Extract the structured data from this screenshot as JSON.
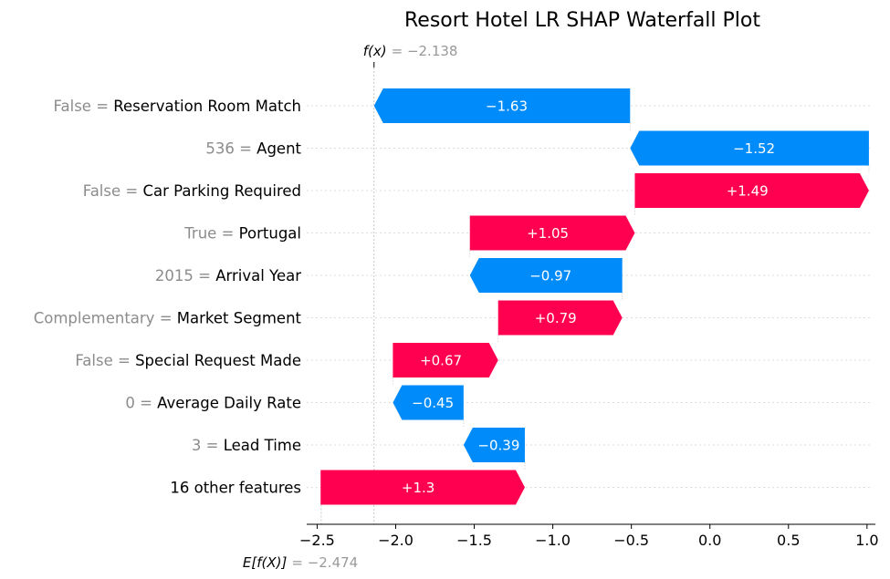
{
  "chart_data": {
    "type": "waterfall",
    "title": "Resort Hotel LR SHAP Waterfall Plot",
    "base_value": -2.474,
    "output_value": -2.138,
    "fx_label_prefix": "f(x)",
    "fx_label_value": "= −2.138",
    "efx_label_prefix": "E[f(X)]",
    "efx_label_value": "= −2.474",
    "xlim": [
      -2.52,
      1.03
    ],
    "xticks": [
      {
        "value": -2.5,
        "label": "−2.5"
      },
      {
        "value": -2.0,
        "label": "−2.0"
      },
      {
        "value": -1.5,
        "label": "−1.5"
      },
      {
        "value": -1.0,
        "label": "−1.0"
      },
      {
        "value": -0.5,
        "label": "−0.5"
      },
      {
        "value": 0.0,
        "label": "0.0"
      },
      {
        "value": 0.5,
        "label": "0.5"
      },
      {
        "value": 1.0,
        "label": "1.0"
      }
    ],
    "features": [
      {
        "value_text": "False",
        "eq": " = ",
        "name": "Reservation Room Match",
        "shap": -1.63,
        "label": "−1.63"
      },
      {
        "value_text": "536",
        "eq": " = ",
        "name": "Agent",
        "shap": -1.52,
        "label": "−1.52"
      },
      {
        "value_text": "False",
        "eq": " = ",
        "name": "Car Parking Required",
        "shap": 1.49,
        "label": "+1.49"
      },
      {
        "value_text": "True",
        "eq": " = ",
        "name": "Portugal",
        "shap": 1.05,
        "label": "+1.05"
      },
      {
        "value_text": "2015",
        "eq": " = ",
        "name": "Arrival Year",
        "shap": -0.97,
        "label": "−0.97"
      },
      {
        "value_text": "Complementary",
        "eq": " = ",
        "name": "Market Segment",
        "shap": 0.79,
        "label": "+0.79"
      },
      {
        "value_text": "False",
        "eq": " = ",
        "name": "Special Request Made",
        "shap": 0.67,
        "label": "+0.67"
      },
      {
        "value_text": "0",
        "eq": " = ",
        "name": "Average Daily Rate",
        "shap": -0.45,
        "label": "−0.45"
      },
      {
        "value_text": "3",
        "eq": " = ",
        "name": "Lead Time",
        "shap": -0.39,
        "label": "−0.39"
      },
      {
        "value_text": "",
        "eq": "",
        "name": "16 other features",
        "shap": 1.3,
        "label": "+1.3"
      }
    ],
    "colors": {
      "positive": "#ff0051",
      "negative": "#008bfb"
    }
  }
}
